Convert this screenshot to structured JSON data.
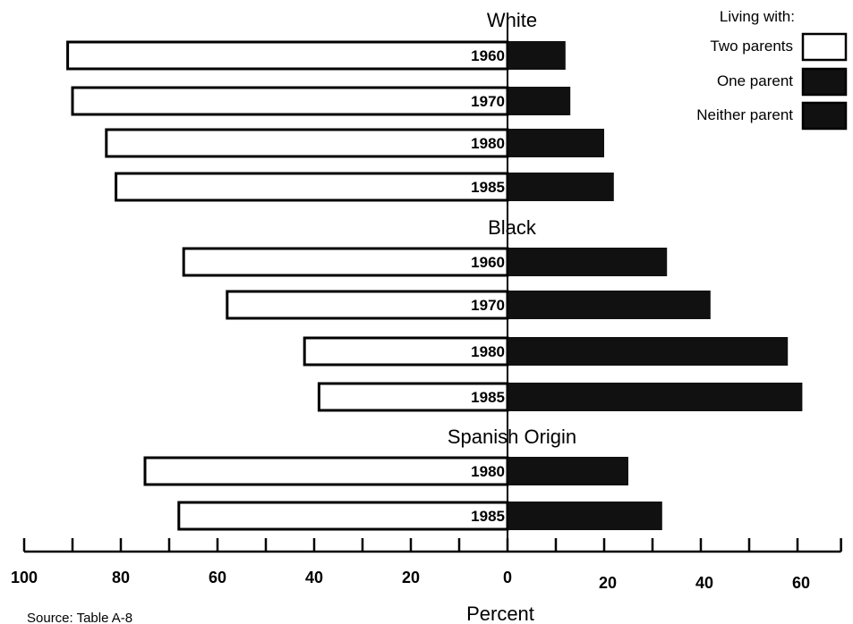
{
  "chart_data": {
    "type": "bar",
    "orientation": "horizontal-diverging",
    "xlabel": "Percent",
    "left_axis": {
      "range": [
        0,
        100
      ],
      "ticks": [
        100,
        80,
        60,
        40,
        20,
        0
      ]
    },
    "right_axis": {
      "range": [
        0,
        70
      ],
      "ticks": [
        0,
        20,
        40,
        60
      ]
    },
    "legend": {
      "title": "Living with:",
      "position": "top-right",
      "items": [
        {
          "label": "Two parents",
          "color": "#ffffff"
        },
        {
          "label": "One parent",
          "color": "#111111"
        },
        {
          "label": "Neither parent",
          "color": "#111111"
        }
      ]
    },
    "groups": [
      {
        "name": "White",
        "categories": [
          "1960",
          "1970",
          "1980",
          "1985"
        ],
        "two_parents": [
          91,
          90,
          83,
          81
        ],
        "one_parent_or_neither": [
          12,
          13,
          20,
          22
        ]
      },
      {
        "name": "Black",
        "categories": [
          "1960",
          "1970",
          "1980",
          "1985"
        ],
        "two_parents": [
          67,
          58,
          42,
          39
        ],
        "one_parent_or_neither": [
          33,
          42,
          58,
          61
        ]
      },
      {
        "name": "Spanish Origin",
        "categories": [
          "1980",
          "1985"
        ],
        "two_parents": [
          75,
          68
        ],
        "one_parent_or_neither": [
          25,
          32
        ]
      }
    ],
    "source": "Source: Table A-8"
  }
}
